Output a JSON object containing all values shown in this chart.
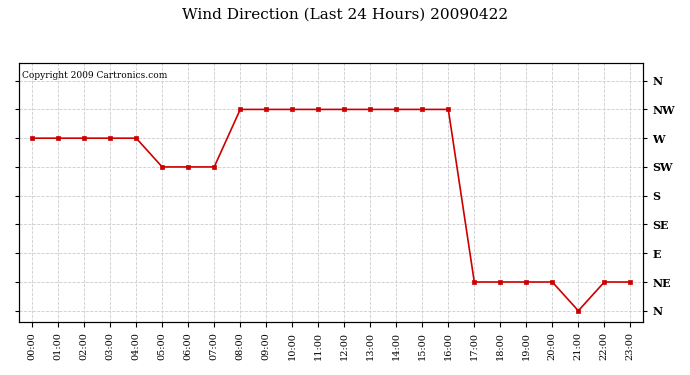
{
  "title": "Wind Direction (Last 24 Hours) 20090422",
  "copyright_text": "Copyright 2009 Cartronics.com",
  "line_color": "#cc0000",
  "marker": "s",
  "marker_size": 3,
  "background_color": "#ffffff",
  "grid_color": "#cccccc",
  "hours": [
    0,
    1,
    2,
    3,
    4,
    5,
    6,
    7,
    8,
    9,
    10,
    11,
    12,
    13,
    14,
    15,
    16,
    17,
    18,
    19,
    20,
    21,
    22,
    23
  ],
  "values": [
    270,
    270,
    270,
    270,
    270,
    225,
    225,
    225,
    315,
    315,
    315,
    315,
    315,
    315,
    315,
    315,
    315,
    45,
    45,
    45,
    45,
    0,
    45,
    45
  ],
  "yticks": [
    360,
    315,
    270,
    225,
    180,
    135,
    90,
    45,
    0
  ],
  "ytick_labels": [
    "N",
    "NW",
    "W",
    "SW",
    "S",
    "SE",
    "E",
    "NE",
    "N"
  ],
  "xtick_labels": [
    "00:00",
    "01:00",
    "02:00",
    "03:00",
    "04:00",
    "05:00",
    "06:00",
    "07:00",
    "08:00",
    "09:00",
    "10:00",
    "11:00",
    "12:00",
    "13:00",
    "14:00",
    "15:00",
    "16:00",
    "17:00",
    "18:00",
    "19:00",
    "20:00",
    "21:00",
    "22:00",
    "23:00"
  ],
  "ylim": [
    -18,
    388
  ],
  "xlim": [
    -0.5,
    23.5
  ],
  "figsize": [
    6.9,
    3.75
  ],
  "dpi": 100,
  "title_fontsize": 11,
  "copyright_fontsize": 6.5,
  "tick_fontsize": 7,
  "ytick_fontsize": 8
}
